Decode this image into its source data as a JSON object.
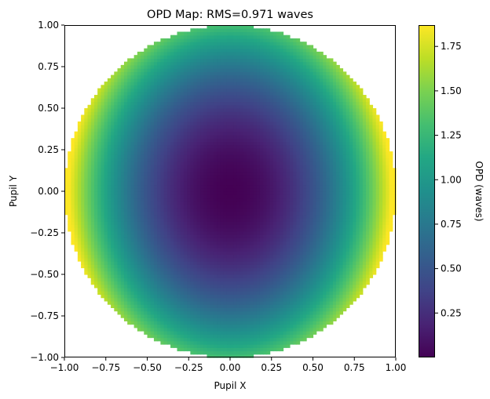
{
  "chart_data": {
    "type": "heatmap",
    "title": "OPD Map: RMS=0.971 waves",
    "xlabel": "Pupil X",
    "ylabel": "Pupil Y",
    "xlim": [
      -1.0,
      1.0
    ],
    "ylim": [
      -1.0,
      1.0
    ],
    "xticks": [
      "−1.00",
      "−0.75",
      "−0.50",
      "−0.25",
      "0.00",
      "0.25",
      "0.50",
      "0.75",
      "1.00"
    ],
    "yticks": [
      "−1.00",
      "−0.75",
      "−0.50",
      "−0.25",
      "0.00",
      "0.25",
      "0.50",
      "0.75",
      "1.00"
    ],
    "colorbar": {
      "label": "OPD (waves)",
      "range": [
        0.0,
        1.87
      ],
      "ticks": [
        "0.25",
        "0.50",
        "0.75",
        "1.00",
        "1.25",
        "1.50",
        "1.75"
      ],
      "colormap": "viridis"
    },
    "field": {
      "domain": "circular pupil, radius 1.0",
      "min_value": 0.0,
      "center_value": 0.0,
      "max_value": 1.87,
      "model": "approximately quadratic in radius (defocus), slightly stronger along X than Y",
      "samples": [
        {
          "x": 0.0,
          "y": 0.0,
          "opd": 0.0
        },
        {
          "x": 0.5,
          "y": 0.0,
          "opd": 0.5
        },
        {
          "x": 0.75,
          "y": 0.0,
          "opd": 1.1
        },
        {
          "x": 0.95,
          "y": 0.0,
          "opd": 1.75
        },
        {
          "x": 0.0,
          "y": 0.5,
          "opd": 0.4
        },
        {
          "x": 0.0,
          "y": 0.95,
          "opd": 1.25
        },
        {
          "x": -0.95,
          "y": 0.1,
          "opd": 1.75
        }
      ]
    },
    "grid": false
  }
}
